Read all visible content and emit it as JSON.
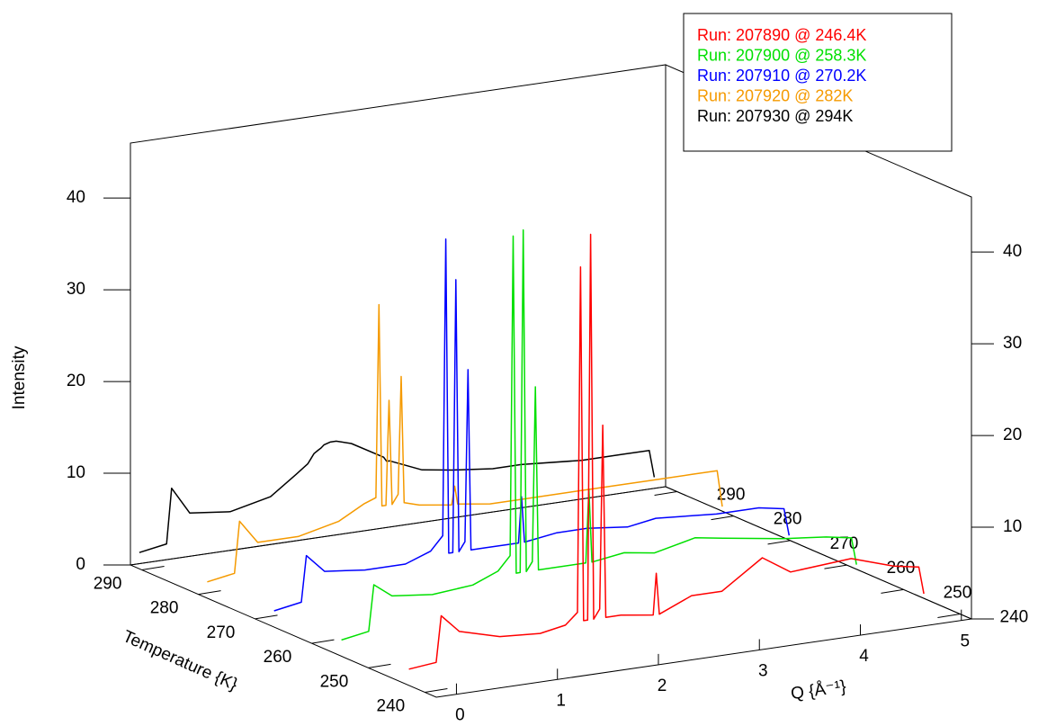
{
  "chart_data": {
    "type": "waterfall3d",
    "x_label": "Q {Å⁻¹}",
    "y_label": "Intensity",
    "z_label": "Temperature {K}",
    "xlim": [
      -0.2,
      5.1
    ],
    "xticks": [
      0,
      1,
      2,
      3,
      4,
      5
    ],
    "ylim": [
      0,
      46
    ],
    "yticks": [
      0,
      10,
      20,
      30,
      40
    ],
    "zlim": [
      238,
      292
    ],
    "zticks": [
      240,
      250,
      260,
      270,
      280,
      290
    ],
    "x": [
      0.0,
      0.27,
      0.32,
      0.5,
      0.9,
      1.3,
      1.55,
      1.67,
      1.7,
      1.73,
      1.77,
      1.8,
      1.83,
      1.89,
      1.92,
      1.95,
      2.1,
      2.42,
      2.45,
      2.48,
      2.8,
      3.1,
      3.5,
      3.78,
      4.38,
      4.8,
      5.05,
      5.1
    ],
    "series": [
      {
        "name": "Run: 207890 @ 246.4K",
        "z": 246.4,
        "color": "#ff0000",
        "values": [
          0.5,
          0.8,
          5.8,
          3.8,
          2.6,
          2.3,
          2.8,
          4,
          41.6,
          3,
          3,
          45,
          3,
          4,
          24,
          3,
          3,
          2.5,
          7,
          2.5,
          4,
          4,
          7,
          5,
          5.5,
          4,
          3.5,
          0.5
        ]
      },
      {
        "name": "Run: 207900 @ 258.3K",
        "z": 258.3,
        "color": "#00e000",
        "values": [
          0.5,
          1,
          6,
          4.5,
          4,
          4.4,
          5.5,
          7,
          41.8,
          5,
          5,
          42.3,
          5,
          6,
          25,
          5,
          5,
          5,
          13,
          5,
          5.5,
          5,
          6,
          5.5,
          4.5,
          4,
          3.5,
          0.5
        ]
      },
      {
        "name": "Run: 207910 @ 270.2K",
        "z": 270.2,
        "color": "#0000ff",
        "values": [
          0.5,
          1,
          6,
          4,
          3.5,
          3.5,
          4.5,
          6,
          38.3,
          4,
          4,
          33.7,
          4,
          5,
          23.7,
          4,
          4,
          4,
          9,
          4,
          4.5,
          4.5,
          4,
          4.5,
          4,
          4,
          3.5,
          0.5
        ]
      },
      {
        "name": "Run: 207920 @ 282K",
        "z": 282,
        "color": "#f59a00",
        "values": [
          0.5,
          1,
          6.6,
          4,
          4,
          5,
          6.5,
          7,
          28,
          6,
          6,
          17.4,
          6,
          7,
          19.8,
          6,
          5.5,
          5,
          7,
          5,
          4.5,
          4.5,
          4.5,
          4.5,
          4.5,
          4.5,
          4.5,
          0.5
        ]
      },
      {
        "name": "Run: 207930 @ 294K",
        "z": 294,
        "color": "#000000",
        "values": [
          0.5,
          1,
          7,
          4,
          3.5,
          4.5,
          6.5,
          7.5,
          8,
          8.5,
          8.8,
          9,
          9.3,
          9.5,
          9.5,
          9.5,
          9,
          7,
          6.5,
          6.5,
          5,
          4.5,
          4,
          4,
          3.5,
          3.5,
          3.5,
          0.5
        ]
      }
    ]
  }
}
